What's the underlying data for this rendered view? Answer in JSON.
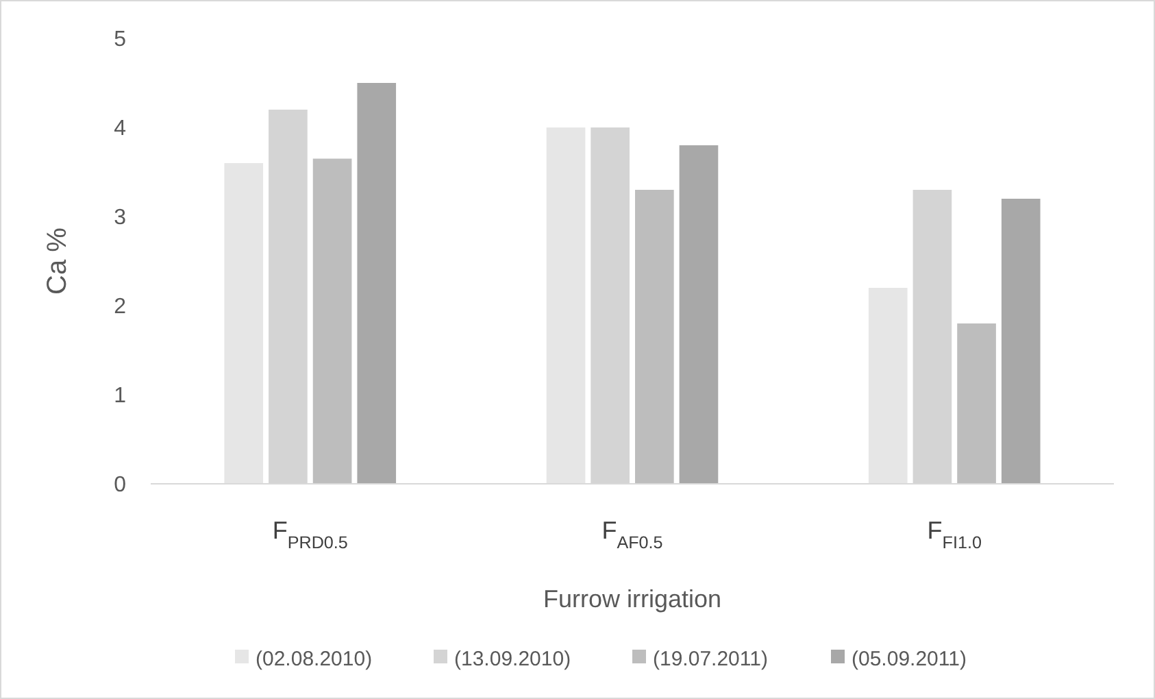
{
  "chart_data": {
    "type": "bar",
    "xlabel": "Furrow irrigation",
    "ylabel": "Ca %",
    "categories": [
      "F$_{PRD0.5}$",
      "F$_{AF0.5}$",
      "F$_{FI1.0}$"
    ],
    "series": [
      {
        "name": "(02.08.2010)",
        "color": "#e6e6e6",
        "values": [
          3.6,
          4.0,
          2.2
        ]
      },
      {
        "name": "(13.09.2010)",
        "color": "#d4d4d4",
        "values": [
          4.2,
          4.0,
          3.3
        ]
      },
      {
        "name": "(19.07.2011)",
        "color": "#bdbdbd",
        "values": [
          3.65,
          3.3,
          1.8
        ]
      },
      {
        "name": "(05.09.2011)",
        "color": "#a8a8a8",
        "values": [
          4.5,
          3.8,
          3.2
        ]
      }
    ],
    "ylim": [
      0,
      5
    ],
    "yticks": [
      0,
      1,
      2,
      3,
      4,
      5
    ],
    "legend": "bottom"
  }
}
